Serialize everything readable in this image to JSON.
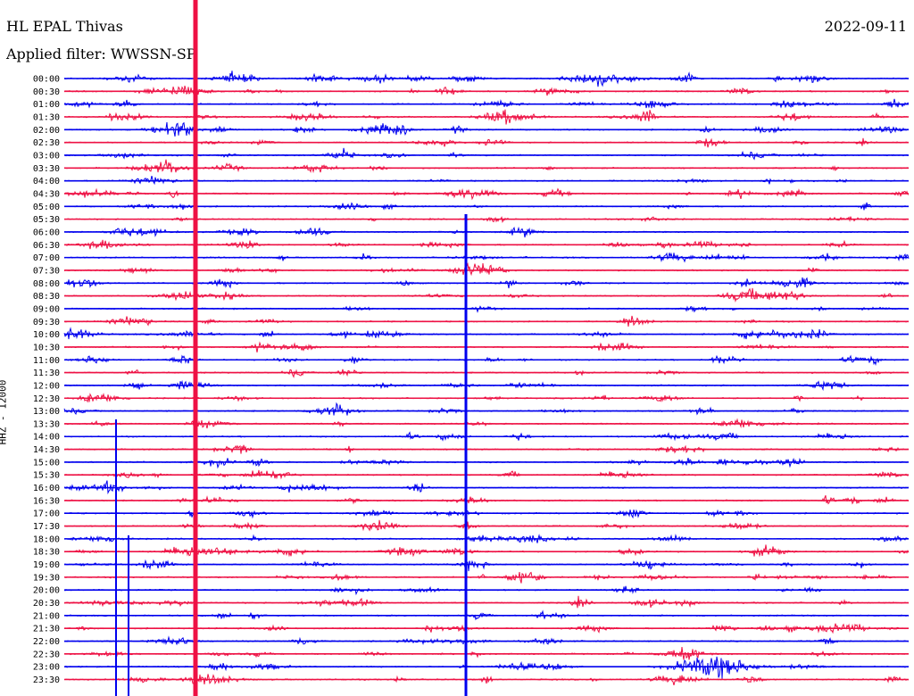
{
  "header": {
    "station": "HL EPAL Thivas",
    "date": "2022-09-11",
    "filter": "Applied filter: WWSSN-SP"
  },
  "colors": {
    "trace_a": "#0000ee",
    "trace_b": "#ee1144"
  },
  "chart_data": {
    "type": "line",
    "title": "HL EPAL Thivas",
    "ylabel": "HHZ - 12000",
    "rows": [
      "00:00",
      "00:30",
      "01:00",
      "01:30",
      "02:00",
      "02:30",
      "03:00",
      "03:30",
      "04:00",
      "04:30",
      "05:00",
      "05:30",
      "06:00",
      "06:30",
      "07:00",
      "07:30",
      "08:00",
      "08:30",
      "09:00",
      "09:30",
      "10:00",
      "10:30",
      "11:00",
      "11:30",
      "12:00",
      "12:30",
      "13:00",
      "13:30",
      "14:00",
      "14:30",
      "15:00",
      "15:30",
      "16:00",
      "16:30",
      "17:00",
      "17:30",
      "18:00",
      "18:30",
      "19:00",
      "19:30",
      "20:00",
      "20:30",
      "21:00",
      "21:30",
      "22:00",
      "22:30",
      "23:00",
      "23:30"
    ],
    "series_colors": [
      "blue",
      "red"
    ],
    "events": [
      {
        "row": 0,
        "x": 0.08,
        "amp": 1.0
      },
      {
        "row": 0,
        "x": 0.63,
        "amp": 2.0
      },
      {
        "row": 0,
        "x": 0.48,
        "amp": 1.0
      },
      {
        "row": 1,
        "x": 0.15,
        "amp": 1.2
      },
      {
        "row": 3,
        "x": 0.53,
        "amp": 1.6
      },
      {
        "row": 3,
        "x": 0.29,
        "amp": 1.2
      },
      {
        "row": 6,
        "x": 0.07,
        "amp": 0.8
      },
      {
        "row": 7,
        "x": 0.11,
        "amp": 1.4
      },
      {
        "row": 9,
        "x": 0.04,
        "amp": 1.0
      },
      {
        "row": 16,
        "x": 0.86,
        "amp": 1.2
      },
      {
        "row": 20,
        "x": 0.82,
        "amp": 1.0
      },
      {
        "row": 31,
        "x": 0.66,
        "amp": 1.2
      },
      {
        "row": 36,
        "x": 0.72,
        "amp": 1.0
      },
      {
        "row": 43,
        "x": 0.91,
        "amp": 1.4
      },
      {
        "row": 46,
        "x": 0.77,
        "amp": 3.0
      },
      {
        "row": 47,
        "x": 0.73,
        "amp": 1.0
      }
    ],
    "gaps": [
      {
        "row": 46,
        "from": 0.62,
        "to": 0.69
      }
    ]
  }
}
